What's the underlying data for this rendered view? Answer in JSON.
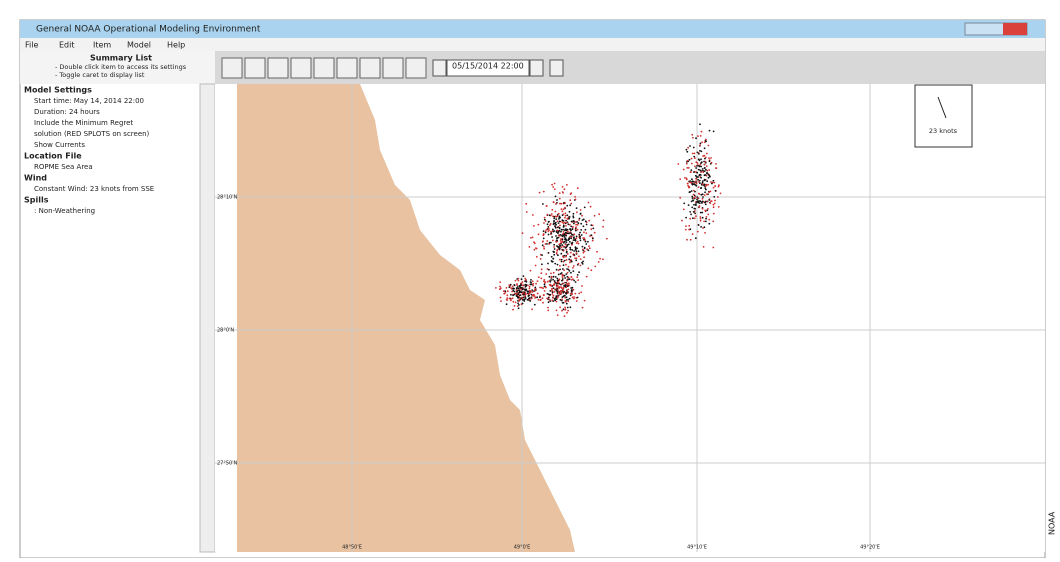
{
  "window": {
    "title": "General NOAA Operational Modeling Environment"
  },
  "menu": [
    "File",
    "Edit",
    "Item",
    "Model",
    "Help"
  ],
  "summary": {
    "title": "Summary List",
    "hints": [
      "- Double click item to access its settings",
      "- Toggle caret to display list"
    ]
  },
  "tree": [
    {
      "label": "Model Settings",
      "items": [
        "Start time: May 14, 2014 22:00",
        "Duration: 24 hours",
        "Include the Minimum Regret",
        "solution (RED SPLOTS on screen)",
        "Show Currents"
      ]
    },
    {
      "label": "Location File",
      "items": [
        "ROPME Sea Area"
      ]
    },
    {
      "label": "Wind",
      "items": [
        "Constant Wind: 23 knots from SSE"
      ]
    },
    {
      "label": "Spills",
      "items": [
        ": Non-Weathering"
      ]
    }
  ],
  "toolbar": {
    "date": "05/15/2014 22:00"
  },
  "map": {
    "wind_label": "23 knots",
    "lat_labels": [
      "28°10'N",
      "28°0'N",
      "27°50'N"
    ],
    "lon_labels": [
      "48°50'E",
      "49°0'E",
      "49°10'E",
      "49°20'E"
    ]
  },
  "credit": "NOAA"
}
